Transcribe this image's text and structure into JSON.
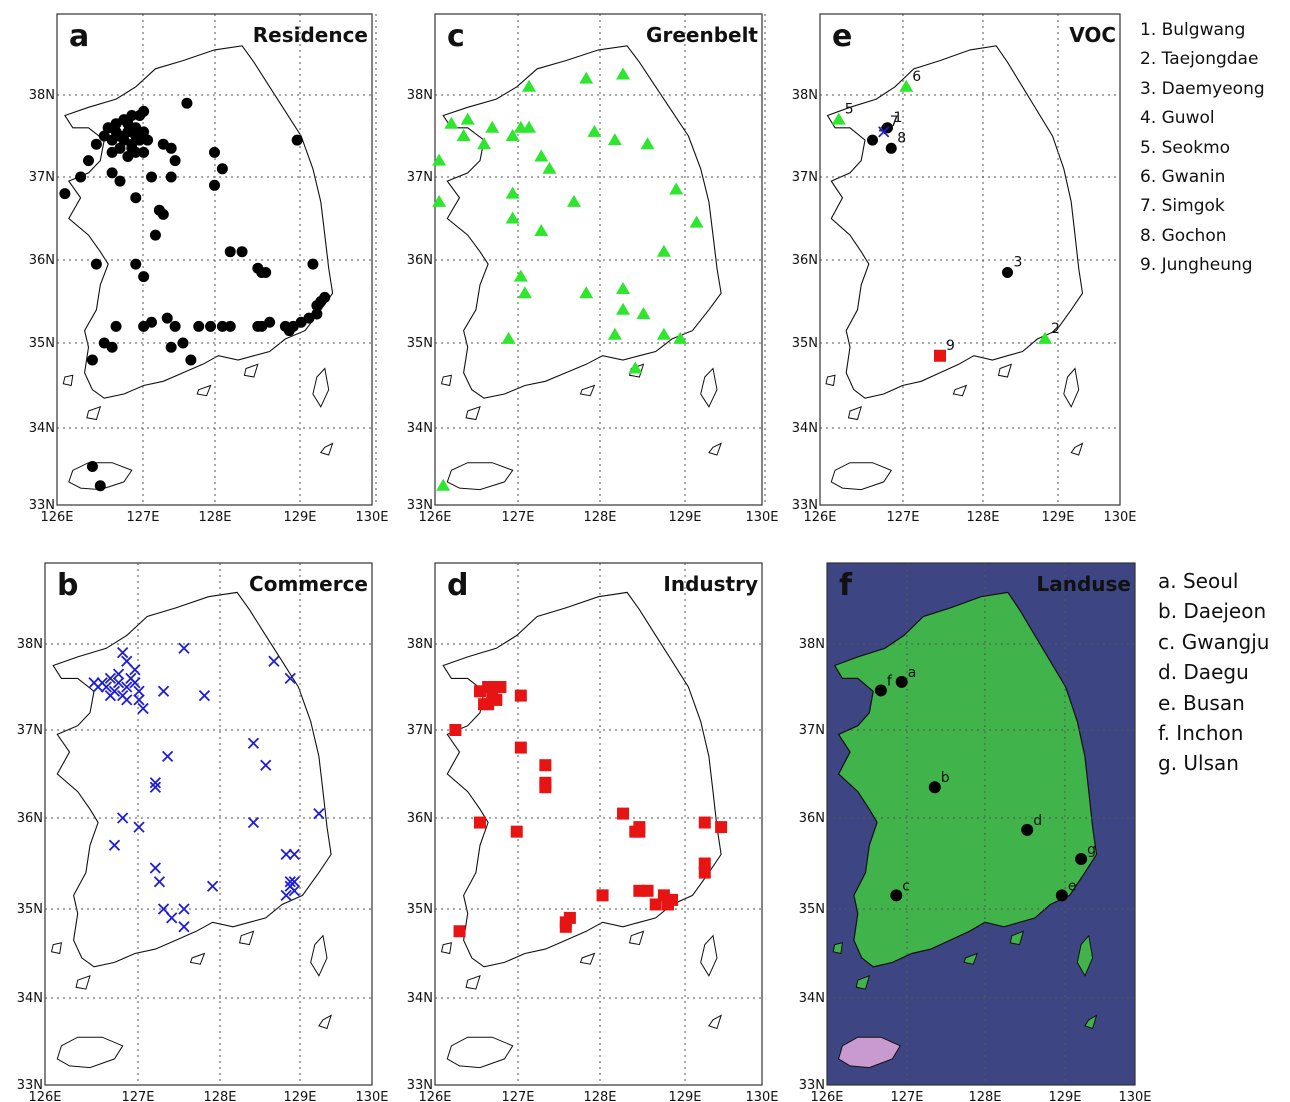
{
  "panels": [
    {
      "id": "a",
      "letter": "a",
      "title": "Residence",
      "marker": "circle",
      "color": "#000000",
      "points": [
        [
          126.8,
          37.5
        ],
        [
          126.9,
          37.55
        ],
        [
          127.0,
          37.5
        ],
        [
          126.85,
          37.45
        ],
        [
          126.95,
          37.4
        ],
        [
          127.05,
          37.45
        ],
        [
          126.75,
          37.55
        ],
        [
          126.9,
          37.65
        ],
        [
          127.0,
          37.6
        ],
        [
          126.7,
          37.45
        ],
        [
          126.95,
          37.35
        ],
        [
          127.1,
          37.55
        ],
        [
          126.8,
          37.35
        ],
        [
          127.0,
          37.3
        ],
        [
          126.65,
          37.6
        ],
        [
          126.85,
          37.7
        ],
        [
          127.05,
          37.75
        ],
        [
          127.15,
          37.45
        ],
        [
          126.7,
          37.3
        ],
        [
          126.9,
          37.25
        ],
        [
          127.1,
          37.8
        ],
        [
          126.6,
          37.5
        ],
        [
          126.95,
          37.75
        ],
        [
          126.75,
          37.65
        ],
        [
          127.1,
          37.3
        ],
        [
          127.65,
          37.9
        ],
        [
          126.3,
          37.0
        ],
        [
          126.1,
          36.8
        ],
        [
          126.5,
          37.4
        ],
        [
          126.4,
          37.2
        ],
        [
          126.7,
          37.05
        ],
        [
          126.8,
          36.95
        ],
        [
          127.0,
          36.75
        ],
        [
          127.2,
          37.0
        ],
        [
          127.35,
          37.4
        ],
        [
          127.45,
          37.35
        ],
        [
          127.5,
          37.2
        ],
        [
          127.45,
          37.0
        ],
        [
          127.3,
          36.6
        ],
        [
          127.35,
          36.55
        ],
        [
          127.25,
          36.3
        ],
        [
          128.0,
          37.3
        ],
        [
          128.1,
          37.1
        ],
        [
          128.0,
          36.9
        ],
        [
          129.05,
          37.45
        ],
        [
          126.5,
          35.95
        ],
        [
          127.1,
          35.8
        ],
        [
          127.0,
          35.95
        ],
        [
          126.75,
          35.2
        ],
        [
          127.1,
          35.2
        ],
        [
          127.2,
          35.25
        ],
        [
          127.4,
          35.3
        ],
        [
          127.5,
          35.2
        ],
        [
          127.6,
          35.0
        ],
        [
          127.45,
          34.95
        ],
        [
          127.8,
          35.2
        ],
        [
          127.7,
          34.8
        ],
        [
          128.1,
          35.2
        ],
        [
          128.2,
          36.1
        ],
        [
          128.35,
          36.1
        ],
        [
          128.6,
          35.85
        ],
        [
          128.55,
          35.9
        ],
        [
          128.65,
          35.85
        ],
        [
          128.55,
          35.2
        ],
        [
          128.6,
          35.2
        ],
        [
          128.7,
          35.25
        ],
        [
          128.9,
          35.2
        ],
        [
          128.95,
          35.15
        ],
        [
          129.0,
          35.2
        ],
        [
          129.1,
          35.25
        ],
        [
          129.2,
          35.3
        ],
        [
          129.3,
          35.35
        ],
        [
          129.35,
          35.5
        ],
        [
          129.4,
          35.55
        ],
        [
          129.3,
          35.45
        ],
        [
          129.25,
          35.95
        ],
        [
          126.45,
          34.8
        ],
        [
          126.45,
          33.5
        ],
        [
          126.55,
          33.25
        ],
        [
          126.7,
          34.95
        ],
        [
          128.2,
          35.2
        ],
        [
          126.6,
          35.0
        ],
        [
          127.95,
          35.2
        ]
      ]
    },
    {
      "id": "b",
      "letter": "b",
      "title": "Commerce",
      "marker": "x",
      "color": "#1d1dd6",
      "points": [
        [
          126.7,
          37.55
        ],
        [
          126.8,
          37.6
        ],
        [
          126.9,
          37.55
        ],
        [
          127.0,
          37.5
        ],
        [
          126.85,
          37.45
        ],
        [
          126.95,
          37.4
        ],
        [
          127.05,
          37.6
        ],
        [
          126.75,
          37.5
        ],
        [
          126.9,
          37.65
        ],
        [
          127.1,
          37.55
        ],
        [
          126.65,
          37.5
        ],
        [
          127.0,
          37.35
        ],
        [
          127.15,
          37.45
        ],
        [
          126.8,
          37.4
        ],
        [
          126.95,
          37.9
        ],
        [
          127.0,
          37.8
        ],
        [
          127.1,
          37.7
        ],
        [
          127.15,
          37.35
        ],
        [
          127.2,
          37.25
        ],
        [
          126.6,
          37.55
        ],
        [
          127.45,
          37.45
        ],
        [
          127.7,
          37.95
        ],
        [
          127.95,
          37.4
        ],
        [
          128.8,
          37.8
        ],
        [
          129.0,
          37.6
        ],
        [
          127.5,
          36.7
        ],
        [
          127.35,
          36.4
        ],
        [
          127.35,
          36.35
        ],
        [
          128.55,
          36.85
        ],
        [
          128.7,
          36.6
        ],
        [
          126.95,
          36.0
        ],
        [
          127.15,
          35.9
        ],
        [
          126.85,
          35.7
        ],
        [
          128.55,
          35.95
        ],
        [
          129.35,
          36.05
        ],
        [
          127.35,
          35.45
        ],
        [
          127.4,
          35.3
        ],
        [
          127.45,
          35.0
        ],
        [
          127.55,
          34.9
        ],
        [
          127.7,
          35.0
        ],
        [
          127.7,
          34.8
        ],
        [
          128.05,
          35.25
        ],
        [
          128.95,
          35.6
        ],
        [
          129.05,
          35.6
        ],
        [
          129.0,
          35.3
        ],
        [
          129.05,
          35.2
        ],
        [
          128.95,
          35.15
        ],
        [
          129.0,
          35.25
        ],
        [
          129.05,
          35.3
        ]
      ]
    },
    {
      "id": "c",
      "letter": "c",
      "title": "Greenbelt",
      "marker": "triangle",
      "color": "#2ee62e",
      "points": [
        [
          126.2,
          37.65
        ],
        [
          126.4,
          37.7
        ],
        [
          126.35,
          37.5
        ],
        [
          126.6,
          37.4
        ],
        [
          126.7,
          37.6
        ],
        [
          126.95,
          37.5
        ],
        [
          127.05,
          37.6
        ],
        [
          127.15,
          37.6
        ],
        [
          126.05,
          37.2
        ],
        [
          126.05,
          36.7
        ],
        [
          127.15,
          38.1
        ],
        [
          127.85,
          38.2
        ],
        [
          128.3,
          38.25
        ],
        [
          128.2,
          37.45
        ],
        [
          128.6,
          37.4
        ],
        [
          127.95,
          37.55
        ],
        [
          127.3,
          37.25
        ],
        [
          127.4,
          37.1
        ],
        [
          126.95,
          36.8
        ],
        [
          127.3,
          36.35
        ],
        [
          126.95,
          36.5
        ],
        [
          127.7,
          36.7
        ],
        [
          128.95,
          36.85
        ],
        [
          129.2,
          36.45
        ],
        [
          128.8,
          36.1
        ],
        [
          127.05,
          35.8
        ],
        [
          127.1,
          35.6
        ],
        [
          127.85,
          35.6
        ],
        [
          128.3,
          35.65
        ],
        [
          128.3,
          35.4
        ],
        [
          128.55,
          35.35
        ],
        [
          128.8,
          35.1
        ],
        [
          129.0,
          35.05
        ],
        [
          128.2,
          35.1
        ],
        [
          126.9,
          35.05
        ],
        [
          128.45,
          34.7
        ],
        [
          126.1,
          33.25
        ]
      ]
    },
    {
      "id": "d",
      "letter": "d",
      "title": "Industry",
      "marker": "square",
      "color": "#e81414",
      "points": [
        [
          126.55,
          37.45
        ],
        [
          126.65,
          37.5
        ],
        [
          126.7,
          37.4
        ],
        [
          126.6,
          37.3
        ],
        [
          126.75,
          37.35
        ],
        [
          126.8,
          37.5
        ],
        [
          126.7,
          37.5
        ],
        [
          126.65,
          37.3
        ],
        [
          127.05,
          37.4
        ],
        [
          126.25,
          37.0
        ],
        [
          127.05,
          36.8
        ],
        [
          127.35,
          36.6
        ],
        [
          127.35,
          36.4
        ],
        [
          127.35,
          36.35
        ],
        [
          126.55,
          35.95
        ],
        [
          127.0,
          35.85
        ],
        [
          128.3,
          36.05
        ],
        [
          128.45,
          35.85
        ],
        [
          128.5,
          35.9
        ],
        [
          128.5,
          35.85
        ],
        [
          129.3,
          35.95
        ],
        [
          129.5,
          35.9
        ],
        [
          129.3,
          35.5
        ],
        [
          129.3,
          35.4
        ],
        [
          128.05,
          35.15
        ],
        [
          128.5,
          35.2
        ],
        [
          128.6,
          35.2
        ],
        [
          128.7,
          35.05
        ],
        [
          128.85,
          35.05
        ],
        [
          128.9,
          35.1
        ],
        [
          128.8,
          35.15
        ],
        [
          127.6,
          34.85
        ],
        [
          127.65,
          34.9
        ],
        [
          127.6,
          34.8
        ],
        [
          126.3,
          34.75
        ]
      ]
    }
  ],
  "voc_panel": {
    "id": "e",
    "letter": "e",
    "title": "VOC",
    "sites": [
      {
        "num": "1",
        "x": 126.9,
        "y": 37.6,
        "marker": "circle",
        "color": "#000000"
      },
      {
        "num": "2",
        "x": 129.0,
        "y": 35.05,
        "marker": "triangle",
        "color": "#2ee62e"
      },
      {
        "num": "3",
        "x": 128.5,
        "y": 35.85,
        "marker": "circle",
        "color": "#000000"
      },
      {
        "num": "4",
        "x": 126.7,
        "y": 37.45,
        "marker": "circle",
        "color": "#000000"
      },
      {
        "num": "5",
        "x": 126.25,
        "y": 37.7,
        "marker": "triangle",
        "color": "#2ee62e"
      },
      {
        "num": "6",
        "x": 127.15,
        "y": 38.1,
        "marker": "triangle",
        "color": "#2ee62e"
      },
      {
        "num": "7",
        "x": 126.85,
        "y": 37.55,
        "marker": "x",
        "color": "#1d1dd6"
      },
      {
        "num": "8",
        "x": 126.95,
        "y": 37.35,
        "marker": "circle",
        "color": "#000000"
      },
      {
        "num": "9",
        "x": 127.6,
        "y": 34.85,
        "marker": "square",
        "color": "#e81414"
      }
    ]
  },
  "landuse_panel": {
    "id": "f",
    "letter": "f",
    "title": "Landuse",
    "sea_color": "#3d4683",
    "land_color": "#40b44a",
    "cities": [
      {
        "label": "a",
        "x": 126.97,
        "y": 37.56
      },
      {
        "label": "b",
        "x": 127.4,
        "y": 36.35
      },
      {
        "label": "c",
        "x": 126.9,
        "y": 35.15
      },
      {
        "label": "d",
        "x": 128.6,
        "y": 35.87
      },
      {
        "label": "e",
        "x": 129.05,
        "y": 35.15
      },
      {
        "label": "f",
        "x": 126.7,
        "y": 37.46
      },
      {
        "label": "g",
        "x": 129.3,
        "y": 35.55
      }
    ]
  },
  "lon_ticks": [
    "126E",
    "127E",
    "128E",
    "129E",
    "130E"
  ],
  "lat_ticks": [
    "33N",
    "34N",
    "35N",
    "36N",
    "37N",
    "38N"
  ],
  "voc_legend": [
    "1. Bulgwang",
    "2. Taejongdae",
    "3. Daemyeong",
    "4. Guwol",
    "5. Seokmo",
    "6. Gwanin",
    "7. Simgok",
    "8. Gochon",
    "9. Jungheung"
  ],
  "city_legend": [
    "a. Seoul",
    "b. Daejeon",
    "c. Gwangju",
    "d. Daegu",
    "e. Busan",
    "f. Inchon",
    "g. Ulsan"
  ]
}
